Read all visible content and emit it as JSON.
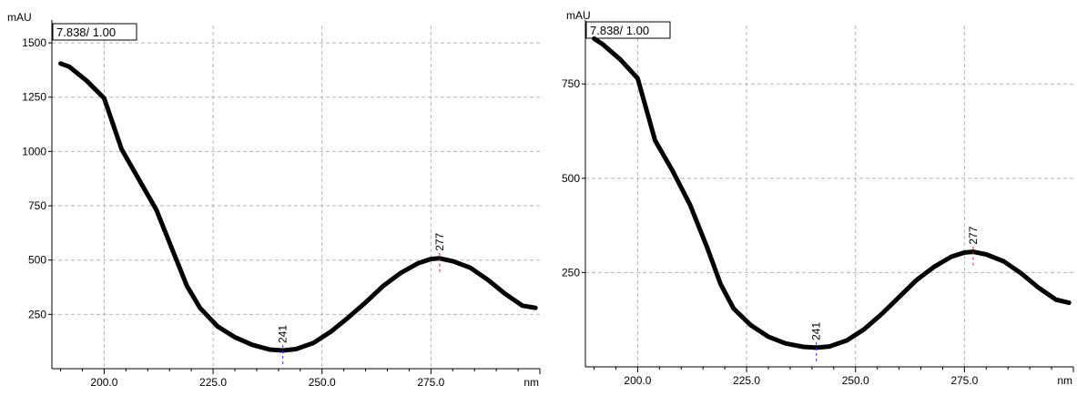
{
  "chart_data": [
    {
      "type": "line",
      "ylabel": "mAU",
      "xlabel": "nm",
      "xlim": [
        188,
        300
      ],
      "ylim": [
        0,
        1580
      ],
      "xticks": [
        "200.0",
        "225.0",
        "250.0",
        "275.0"
      ],
      "yticks": [
        "250",
        "500",
        "750",
        "1000",
        "1250",
        "1500"
      ],
      "grid": true,
      "annotation_box": "7.838/ 1.00",
      "peaks": [
        {
          "x": 241,
          "label": "241",
          "kind": "minimum",
          "color": "#2a3bd6"
        },
        {
          "x": 277,
          "label": "277",
          "kind": "maximum",
          "color": "#c62828"
        }
      ],
      "series": [
        {
          "line_color": "#000000",
          "x": [
            190,
            192,
            196,
            200,
            204,
            208,
            212,
            216,
            219,
            222,
            226,
            230,
            234,
            238,
            241,
            244,
            248,
            252,
            256,
            260,
            264,
            268,
            272,
            275,
            277,
            280,
            284,
            288,
            292,
            296,
            299
          ],
          "y": [
            1405,
            1390,
            1325,
            1245,
            1010,
            870,
            730,
            530,
            380,
            280,
            195,
            145,
            110,
            88,
            84,
            90,
            118,
            170,
            235,
            305,
            380,
            440,
            485,
            505,
            508,
            495,
            465,
            410,
            345,
            290,
            280
          ]
        }
      ]
    },
    {
      "type": "line",
      "ylabel": "mAU",
      "xlabel": "nm",
      "xlim": [
        188,
        300
      ],
      "ylim": [
        0,
        905
      ],
      "xticks": [
        "200.0",
        "225.0",
        "250.0",
        "275.0"
      ],
      "yticks": [
        "250",
        "500",
        "750"
      ],
      "grid": true,
      "annotation_box": "7.838/ 1.00",
      "peaks": [
        {
          "x": 241,
          "label": "241",
          "kind": "minimum",
          "color": "#2a3bd6"
        },
        {
          "x": 277,
          "label": "277",
          "kind": "maximum",
          "color": "#c62828"
        }
      ],
      "series": [
        {
          "line_color": "#000000",
          "x": [
            190,
            192,
            196,
            200,
            204,
            208,
            212,
            216,
            219,
            222,
            226,
            230,
            234,
            238,
            241,
            244,
            248,
            252,
            256,
            260,
            264,
            268,
            272,
            275,
            277,
            280,
            284,
            288,
            292,
            296,
            299
          ],
          "y": [
            870,
            855,
            815,
            765,
            600,
            520,
            430,
            315,
            220,
            155,
            110,
            80,
            62,
            53,
            51,
            54,
            70,
            100,
            140,
            185,
            230,
            265,
            292,
            303,
            305,
            298,
            280,
            248,
            210,
            178,
            170
          ]
        }
      ]
    }
  ]
}
